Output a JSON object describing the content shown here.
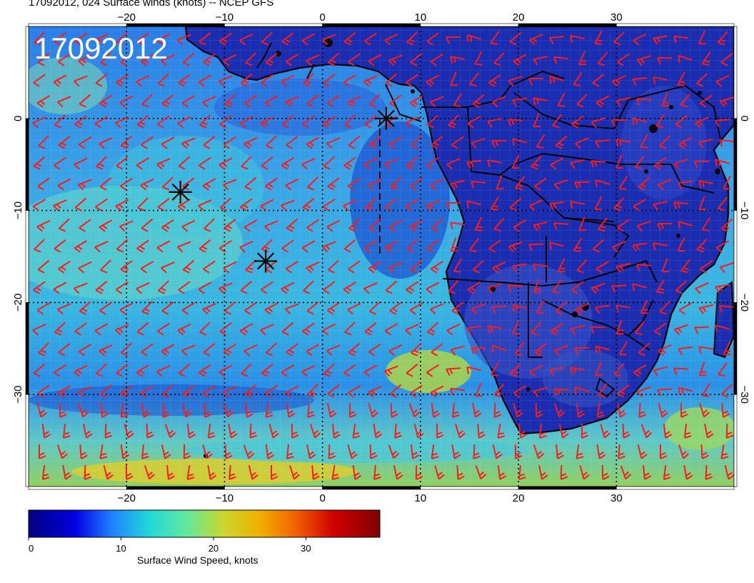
{
  "header": {
    "title": "17092012, 024 Surface winds (knots) -- NCEP GFS"
  },
  "map": {
    "date_stamp": "17092012",
    "lon_range": [
      -30,
      42
    ],
    "lat_range": [
      -40,
      10
    ],
    "lon_ticks": [
      {
        "value": -20,
        "label": "−20"
      },
      {
        "value": -10,
        "label": "−10"
      },
      {
        "value": 0,
        "label": "0"
      },
      {
        "value": 10,
        "label": "10"
      },
      {
        "value": 20,
        "label": "20"
      },
      {
        "value": 30,
        "label": "30"
      }
    ],
    "lat_ticks": [
      {
        "value": 0,
        "label": "0"
      },
      {
        "value": -10,
        "label": "−10"
      },
      {
        "value": -20,
        "label": "−20"
      },
      {
        "value": -30,
        "label": "−30"
      }
    ],
    "markers": [
      {
        "name": "buoy-marker",
        "lon": 6.5,
        "lat": 0.0
      },
      {
        "name": "buoy-marker",
        "lon": -14.5,
        "lat": -8.0
      },
      {
        "name": "buoy-marker",
        "lon": -5.8,
        "lat": -15.5
      }
    ],
    "colors": {
      "barb": "#ff1a1a",
      "land": "#1a2db0",
      "ocean": "#2f8ee8",
      "coast": "#000000"
    }
  },
  "colorbar": {
    "label": "Surface Wind Speed, knots",
    "min": 0,
    "max": 38,
    "ticks": [
      {
        "value": 0,
        "label": "0"
      },
      {
        "value": 10,
        "label": "10"
      },
      {
        "value": 20,
        "label": "20"
      },
      {
        "value": 30,
        "label": "30"
      }
    ],
    "stops": [
      {
        "value": 0,
        "color": "#00007f"
      },
      {
        "value": 5,
        "color": "#0000e0"
      },
      {
        "value": 9,
        "color": "#2080ff"
      },
      {
        "value": 13,
        "color": "#20d8d8"
      },
      {
        "value": 17,
        "color": "#60e8a0"
      },
      {
        "value": 21,
        "color": "#c8d830"
      },
      {
        "value": 25,
        "color": "#f0b000"
      },
      {
        "value": 29,
        "color": "#f06000"
      },
      {
        "value": 33,
        "color": "#d00000"
      },
      {
        "value": 38,
        "color": "#800000"
      }
    ]
  }
}
